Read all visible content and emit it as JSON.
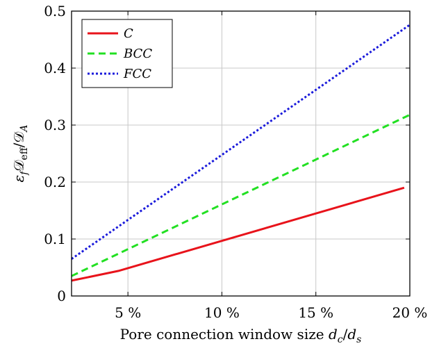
{
  "chart_data": {
    "type": "line",
    "xlabel": "Pore connection window size d_c/d_s",
    "ylabel": "ε_f 𝒟_eff/𝒟_A",
    "xlim": [
      2,
      20
    ],
    "ylim": [
      0,
      0.5
    ],
    "x_ticks": [
      5,
      10,
      15,
      20
    ],
    "x_tick_labels": [
      "5 %",
      "10 %",
      "15 %",
      "20 %"
    ],
    "y_ticks": [
      0,
      0.1,
      0.2,
      0.3,
      0.4,
      0.5
    ],
    "y_tick_labels": [
      "0",
      "0.1",
      "0.2",
      "0.3",
      "0.4",
      "0.5"
    ],
    "grid": true,
    "legend_position": "top-left",
    "series": [
      {
        "name": "C",
        "color": "#e8131b",
        "dash": "solid",
        "x": [
          2,
          4.5,
          19.7
        ],
        "y": [
          0.027,
          0.044,
          0.19
        ]
      },
      {
        "name": "BCC",
        "color": "#22e022",
        "dash": "dashed",
        "x": [
          2,
          20
        ],
        "y": [
          0.035,
          0.318
        ]
      },
      {
        "name": "FCC",
        "color": "#1a1adb",
        "dash": "dotted",
        "x": [
          2,
          20
        ],
        "y": [
          0.065,
          0.476
        ]
      }
    ]
  }
}
